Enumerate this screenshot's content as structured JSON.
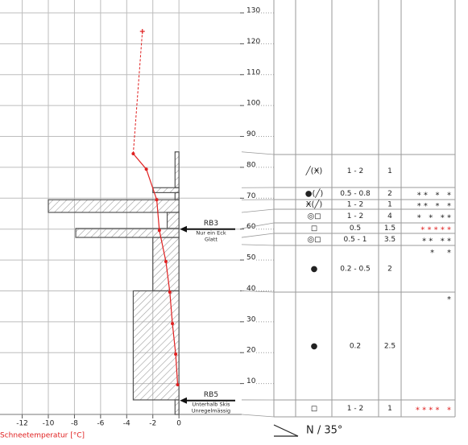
{
  "chart_data": {
    "type": "snow_profile",
    "temperature_axis": {
      "label": "Schneetemperatur [°C]",
      "xlim": [
        -13.7,
        4.8
      ],
      "xticks": [
        -12,
        -10,
        -8,
        -6,
        -4,
        -2,
        0
      ]
    },
    "height_axis": {
      "ylim": [
        0,
        130
      ],
      "yticks": [
        10,
        20,
        30,
        40,
        50,
        60,
        70,
        80,
        90,
        100,
        110,
        120,
        130
      ]
    },
    "grid": true,
    "snow_temperature": {
      "color": "#e02020",
      "temps": [
        -3.5,
        -2.5,
        -1.7,
        -1.5,
        -1.0,
        -0.7,
        -0.5,
        -0.25,
        -0.1
      ],
      "heights": [
        84.4,
        79.4,
        69.5,
        59.6,
        49.5,
        39.6,
        29.4,
        19.5,
        9.6
      ]
    },
    "air_temperature": {
      "temp": -2.8,
      "height": 124
    },
    "hardness_profile": {
      "color": "#555555",
      "layers": [
        {
          "bottom": 0,
          "top": 4.7,
          "value": -0.3
        },
        {
          "bottom": 4.7,
          "top": 40,
          "value": -3.5
        },
        {
          "bottom": 40,
          "top": 57.3,
          "value": -2
        },
        {
          "bottom": 57.3,
          "top": 60.2,
          "value": -7.9
        },
        {
          "bottom": 60.2,
          "top": 65.4,
          "value": -0.9
        },
        {
          "bottom": 65.4,
          "top": 69.5,
          "value": -10
        },
        {
          "bottom": 69.5,
          "top": 71.8,
          "value": -0.3
        },
        {
          "bottom": 71.8,
          "top": 73.4,
          "value": -2
        },
        {
          "bottom": 73.4,
          "top": 85,
          "value": -0.3
        }
      ]
    },
    "annotations": [
      {
        "height": 60,
        "lines": [
          "RB3",
          "Nur ein Eck",
          "Glatt"
        ]
      },
      {
        "height": 4.5,
        "lines": [
          "RB5",
          "Unterhalb Skis",
          "Unregelmässig"
        ]
      }
    ],
    "layers_table": {
      "rows": [
        {
          "grain": "╱(Ӿ)",
          "size": "1 - 2",
          "wetness": "1",
          "stars": "",
          "star_color": "#222222"
        },
        {
          "grain": "●(╱)",
          "size": "0.5 - 0.8",
          "wetness": "2",
          "stars": "* *   *   *",
          "star_color": "#222222"
        },
        {
          "grain": "Ӿ(╱)",
          "size": "1 - 2",
          "wetness": "1",
          "stars": "* *   *   *",
          "star_color": "#222222"
        },
        {
          "grain": "◎◻",
          "size": "1 - 2",
          "wetness": "4",
          "stars": "*   *   * *",
          "star_color": "#222222"
        },
        {
          "grain": "◻",
          "size": "0.5",
          "wetness": "1.5",
          "stars": "* * * * *",
          "star_color": "#e02020"
        },
        {
          "grain": "◎◻",
          "size": "0.5 - 1",
          "wetness": "3.5",
          "stars": "* *   * *",
          "star_color": "#222222"
        },
        {
          "grain": "●",
          "size": "0.2 - 0.5",
          "wetness": "2",
          "stars": "*     *",
          "star_color": "#222222"
        },
        {
          "grain": "●",
          "size": "0.2",
          "wetness": "2.5",
          "stars": "*",
          "star_color": "#222222"
        },
        {
          "grain": "◻",
          "size": "1 - 2",
          "wetness": "1",
          "stars": "* * * *   *",
          "star_color": "#e02020"
        }
      ]
    },
    "slope": {
      "label": "N / 35°"
    }
  }
}
